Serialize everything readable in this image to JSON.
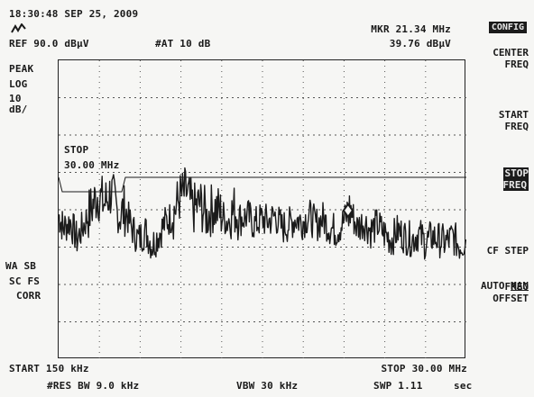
{
  "header": {
    "timestamp": "18:30:48 SEP 25, 2009",
    "ref_level": "REF 90.0 dBμV",
    "attenuation": "#AT 10 dB",
    "marker_freq": "MKR 21.34 MHz",
    "marker_amp": "39.76 dBμV"
  },
  "left_panel": {
    "detector": "PEAK",
    "scale_type": "LOG",
    "scale_value": "10",
    "scale_unit": "dB/",
    "wa_sb": "WA SB",
    "sc_fs": "SC FS",
    "corr": "CORR"
  },
  "annotation": {
    "stop_label": "STOP",
    "stop_value": "30.00 MHz"
  },
  "footer": {
    "start": "START 150 kHz",
    "stop": "STOP 30.00 MHz",
    "res_bw": "#RES BW 9.0 kHz",
    "vbw": "VBW 30 kHz",
    "swp": "SWP 1.11",
    "swp_unit": "sec"
  },
  "softkeys": {
    "top_tag": "CONFIG",
    "center_freq": "CENTER\nFREQ",
    "start_freq": "START\nFREQ",
    "stop_freq": "STOP\nFREQ",
    "cf_step_1": "CF STEP",
    "cf_step_auto": "AUTO ",
    "cf_step_man": "MAN",
    "freq_offset": "FREQ\nOFFSET"
  },
  "colors": {
    "trace": "#1b1b1b",
    "grid": "#555555",
    "background": "#f6f6f4"
  },
  "chart_data": {
    "type": "line",
    "x_unit": "MHz",
    "y_unit": "dBμV",
    "xlim": [
      0.15,
      30.0
    ],
    "ylim": [
      -10,
      90
    ],
    "grid": true,
    "marker": {
      "x": 21.34,
      "y": 39.76
    },
    "series": [
      {
        "values_x": [
          0.15,
          0.5,
          1,
          1.5,
          2,
          2.5,
          3,
          3.5,
          4,
          4.5,
          5,
          5.5,
          6,
          6.5,
          7,
          7.5,
          8,
          8.5,
          9,
          9.5,
          10,
          10.5,
          11,
          11.5,
          12,
          12.5,
          13,
          13.5,
          14,
          14.5,
          15,
          15.5,
          16,
          16.5,
          17,
          17.5,
          18,
          18.5,
          19,
          19.5,
          20,
          20.5,
          21,
          21.5,
          22,
          22.5,
          23,
          23.5,
          24,
          24.5,
          25,
          25.5,
          26,
          26.5,
          27,
          27.5,
          28,
          28.5,
          29,
          29.5,
          30
        ],
        "values_y": [
          38,
          34,
          36,
          30,
          35,
          40,
          45,
          42,
          46,
          38,
          40,
          34,
          30,
          33,
          28,
          32,
          36,
          38,
          44,
          46,
          40,
          42,
          38,
          41,
          39,
          36,
          40,
          37,
          38,
          35,
          37,
          36,
          38,
          34,
          35,
          37,
          36,
          38,
          35,
          37,
          34,
          33,
          36,
          40,
          34,
          36,
          33,
          35,
          32,
          30,
          33,
          31,
          30,
          32,
          29,
          31,
          30,
          29,
          31,
          28,
          30
        ]
      }
    ]
  }
}
